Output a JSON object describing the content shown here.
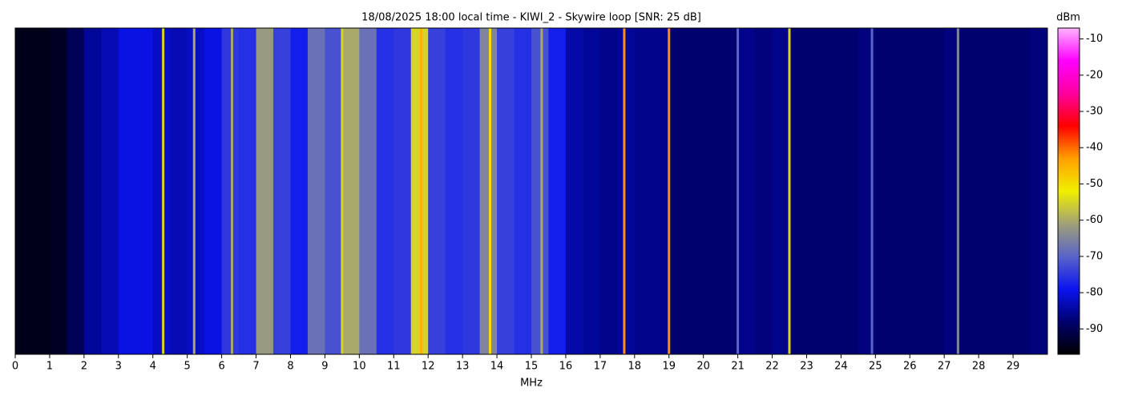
{
  "chart_data": {
    "type": "heatmap",
    "title": "18/08/2025 18:00 local time - KIWI_2 - Skywire loop [SNR: 25 dB]",
    "xlabel": "MHz",
    "colorbar_label": "dBm",
    "xlim": [
      0,
      30
    ],
    "xticks": [
      0,
      1,
      2,
      3,
      4,
      5,
      6,
      7,
      8,
      9,
      10,
      11,
      12,
      13,
      14,
      15,
      16,
      17,
      18,
      19,
      20,
      21,
      22,
      23,
      24,
      25,
      26,
      27,
      28,
      29
    ],
    "clim": [
      -97,
      -7
    ],
    "cticks": [
      -10,
      -20,
      -30,
      -40,
      -50,
      -60,
      -70,
      -80,
      -90
    ],
    "colors": [
      "#000000",
      "#00006e",
      "#0a14f0",
      "#5a64c8",
      "#a0a078",
      "#f0f000",
      "#ffa000",
      "#ff0000",
      "#ff00a0",
      "#ff00ff",
      "#ffb4ff"
    ],
    "x": [
      0.25,
      0.75,
      1.25,
      1.75,
      2.25,
      2.75,
      3.25,
      3.75,
      4.25,
      4.75,
      5.25,
      5.75,
      6.25,
      6.75,
      7.25,
      7.75,
      8.25,
      8.75,
      9.25,
      9.75,
      10.25,
      10.75,
      11.25,
      11.75,
      12.25,
      12.75,
      13.25,
      13.75,
      14.25,
      14.75,
      15.25,
      15.75,
      16.25,
      16.75,
      17.25,
      17.75,
      18.25,
      18.75,
      19.25,
      19.75,
      20.25,
      20.75,
      21.25,
      21.75,
      22.25,
      22.75,
      23.25,
      23.75,
      24.25,
      24.75,
      25.25,
      25.75,
      26.25,
      26.75,
      27.25,
      27.75,
      28.25,
      28.75,
      29.25,
      29.75
    ],
    "values": [
      -95,
      -95,
      -94,
      -90,
      -85,
      -83,
      -80,
      -80,
      -82,
      -83,
      -82,
      -80,
      -75,
      -76,
      -62,
      -74,
      -78,
      -68,
      -72,
      -60,
      -68,
      -76,
      -75,
      -55,
      -74,
      -76,
      -75,
      -65,
      -74,
      -76,
      -72,
      -78,
      -84,
      -85,
      -86,
      -85,
      -86,
      -86,
      -88,
      -88,
      -88,
      -88,
      -86,
      -87,
      -86,
      -88,
      -88,
      -88,
      -88,
      -87,
      -88,
      -88,
      -88,
      -88,
      -87,
      -88,
      -88,
      -88,
      -88,
      -87
    ],
    "carriers": {
      "x": [
        4.3,
        5.2,
        6.3,
        9.5,
        11.8,
        13.8,
        15.3,
        17.7,
        19.0,
        21.0,
        22.5,
        24.9,
        27.4
      ],
      "values": [
        -55,
        -60,
        -60,
        -55,
        -45,
        -50,
        -60,
        -42,
        -42,
        -70,
        -55,
        -70,
        -65
      ]
    }
  }
}
